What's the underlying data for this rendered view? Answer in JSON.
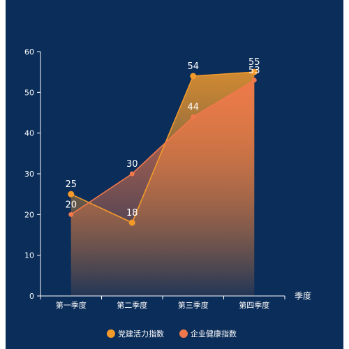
{
  "chart_data": {
    "type": "area",
    "categories": [
      "第一季度",
      "第二季度",
      "第三季度",
      "第四季度"
    ],
    "series": [
      {
        "name": "党建活力指数",
        "values": [
          25,
          18,
          54,
          55
        ],
        "color": "#f39a2b"
      },
      {
        "name": "企业健康指数",
        "values": [
          20,
          30,
          44,
          53
        ],
        "color": "#f0784b"
      }
    ],
    "y_ticks": [
      0,
      10,
      20,
      30,
      40,
      50,
      60
    ],
    "ylim": [
      0,
      60
    ],
    "xlabel": "季度",
    "ylabel": "",
    "legend_position": "bottom",
    "background_color": "#0b2d59",
    "axis_color": "#ffffff",
    "label_color": "#ffffff",
    "grid": false
  }
}
